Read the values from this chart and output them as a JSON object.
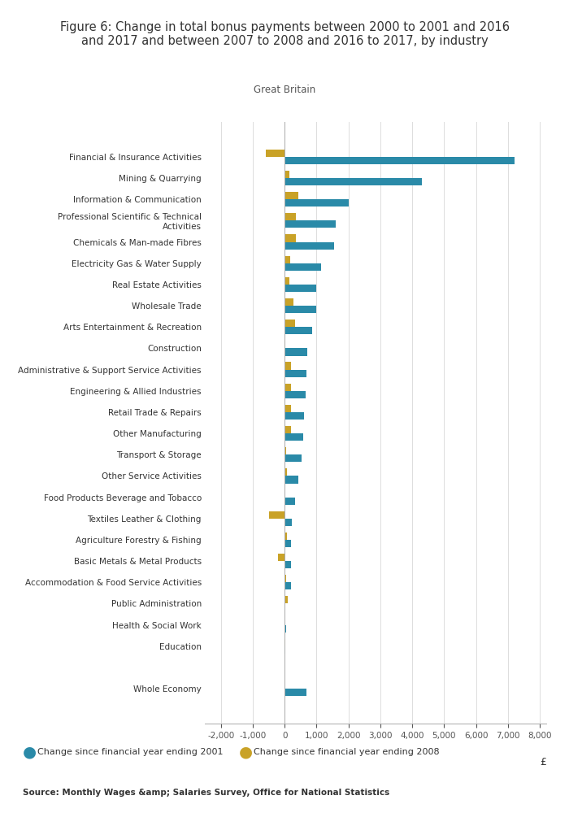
{
  "title": "Figure 6: Change in total bonus payments between 2000 to 2001 and 2016\nand 2017 and between 2007 to 2008 and 2016 to 2017, by industry",
  "subtitle": "Great Britain",
  "source": "Source: Monthly Wages &amp; Salaries Survey, Office for National Statistics",
  "xlabel": "£",
  "legend": [
    "Change since financial year ending 2001",
    "Change since financial year ending 2008"
  ],
  "color_2001": "#2a8aa8",
  "color_2008": "#c9a227",
  "background": "#ffffff",
  "categories": [
    "Financial & Insurance Activities",
    "Mining & Quarrying",
    "Information & Communication",
    "Professional Scientific & Technical\nActivities",
    "Chemicals & Man-made Fibres",
    "Electricity Gas & Water Supply",
    "Real Estate Activities",
    "Wholesale Trade",
    "Arts Entertainment & Recreation",
    "Construction",
    "Administrative & Support Service Activities",
    "Engineering & Allied Industries",
    "Retail Trade & Repairs",
    "Other Manufacturing",
    "Transport & Storage",
    "Other Service Activities",
    "Food Products Beverage and Tobacco",
    "Textiles Leather & Clothing",
    "Agriculture Forestry & Fishing",
    "Basic Metals & Metal Products",
    "Accommodation & Food Service Activities",
    "Public Administration",
    "Health & Social Work",
    "Education",
    "",
    "Whole Economy"
  ],
  "values_2001": [
    7200,
    4300,
    2000,
    1600,
    1550,
    1150,
    1000,
    980,
    870,
    720,
    680,
    660,
    620,
    580,
    520,
    430,
    320,
    230,
    190,
    210,
    190,
    0,
    55,
    25,
    0,
    680
  ],
  "values_2008": [
    -600,
    140,
    430,
    360,
    360,
    170,
    140,
    280,
    330,
    28,
    190,
    210,
    190,
    190,
    38,
    75,
    0,
    -480,
    75,
    -210,
    48,
    95,
    0,
    28,
    0,
    0
  ],
  "xlim": [
    -2500,
    8200
  ],
  "xticks": [
    -2000,
    -1000,
    0,
    1000,
    2000,
    3000,
    4000,
    5000,
    6000,
    7000,
    8000
  ]
}
